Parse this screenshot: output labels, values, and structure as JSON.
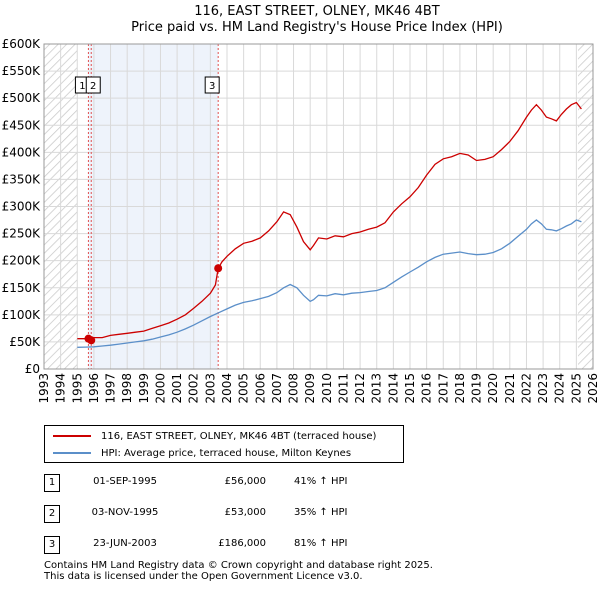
{
  "chart_data": {
    "type": "line",
    "title": "116, EAST STREET, OLNEY, MK46 4BT",
    "subtitle": "Price paid vs. HM Land Registry's House Price Index (HPI)",
    "xlim": [
      1993,
      2026
    ],
    "ylim": [
      0,
      600000
    ],
    "x_ticks": [
      1993,
      1994,
      1995,
      1996,
      1997,
      1998,
      1999,
      2000,
      2001,
      2002,
      2003,
      2004,
      2005,
      2006,
      2007,
      2008,
      2009,
      2010,
      2011,
      2012,
      2013,
      2014,
      2015,
      2016,
      2017,
      2018,
      2019,
      2020,
      2021,
      2022,
      2023,
      2024,
      2025,
      2026
    ],
    "y_ticks": [
      {
        "value": 0,
        "label": "£0"
      },
      {
        "value": 50000,
        "label": "£50K"
      },
      {
        "value": 100000,
        "label": "£100K"
      },
      {
        "value": 150000,
        "label": "£150K"
      },
      {
        "value": 200000,
        "label": "£200K"
      },
      {
        "value": 250000,
        "label": "£250K"
      },
      {
        "value": 300000,
        "label": "£300K"
      },
      {
        "value": 350000,
        "label": "£350K"
      },
      {
        "value": 400000,
        "label": "£400K"
      },
      {
        "value": 450000,
        "label": "£450K"
      },
      {
        "value": 500000,
        "label": "£500K"
      },
      {
        "value": 550000,
        "label": "£550K"
      },
      {
        "value": 600000,
        "label": "£600K"
      }
    ],
    "hatch_before": 1995.0,
    "hatch_after": 2025.1,
    "shade_start": 1995.67,
    "shade_end": 2003.47,
    "series": [
      {
        "name": "116, EAST STREET, OLNEY, MK46 4BT (terraced house)",
        "color": "#cc0000",
        "x": [
          1995.0,
          1995.67,
          1995.84,
          1996.0,
          1996.5,
          1997.0,
          1997.5,
          1998.0,
          1998.5,
          1999.0,
          1999.5,
          2000.0,
          2000.5,
          2001.0,
          2001.5,
          2002.0,
          2002.5,
          2003.0,
          2003.3,
          2003.47,
          2003.7,
          2004.0,
          2004.5,
          2005.0,
          2005.5,
          2006.0,
          2006.5,
          2007.0,
          2007.4,
          2007.8,
          2008.2,
          2008.6,
          2009.0,
          2009.2,
          2009.5,
          2010.0,
          2010.5,
          2011.0,
          2011.5,
          2012.0,
          2012.5,
          2013.0,
          2013.5,
          2014.0,
          2014.5,
          2015.0,
          2015.5,
          2016.0,
          2016.5,
          2017.0,
          2017.5,
          2018.0,
          2018.5,
          2019.0,
          2019.5,
          2020.0,
          2020.5,
          2021.0,
          2021.5,
          2022.0,
          2022.3,
          2022.6,
          2022.9,
          2023.2,
          2023.5,
          2023.8,
          2024.1,
          2024.4,
          2024.7,
          2025.0,
          2025.3
        ],
        "values": [
          56000,
          56000,
          53000,
          58000,
          58000,
          62000,
          64000,
          66000,
          68000,
          70000,
          75000,
          80000,
          85000,
          92000,
          100000,
          112000,
          125000,
          140000,
          155000,
          186000,
          198000,
          208000,
          222000,
          232000,
          236000,
          242000,
          255000,
          272000,
          290000,
          285000,
          262000,
          235000,
          220000,
          228000,
          242000,
          240000,
          246000,
          244000,
          250000,
          253000,
          258000,
          262000,
          270000,
          290000,
          305000,
          318000,
          335000,
          358000,
          378000,
          388000,
          392000,
          398000,
          395000,
          385000,
          387000,
          392000,
          405000,
          420000,
          440000,
          465000,
          478000,
          488000,
          478000,
          465000,
          462000,
          458000,
          470000,
          480000,
          488000,
          492000,
          480000
        ]
      },
      {
        "name": "HPI: Average price, terraced house, Milton Keynes",
        "color": "#5b8fc9",
        "x": [
          1995.0,
          1995.5,
          1996.0,
          1996.5,
          1997.0,
          1997.5,
          1998.0,
          1998.5,
          1999.0,
          1999.5,
          2000.0,
          2000.5,
          2001.0,
          2001.5,
          2002.0,
          2002.5,
          2003.0,
          2003.5,
          2004.0,
          2004.5,
          2005.0,
          2005.5,
          2006.0,
          2006.5,
          2007.0,
          2007.4,
          2007.8,
          2008.2,
          2008.6,
          2009.0,
          2009.2,
          2009.5,
          2010.0,
          2010.5,
          2011.0,
          2011.5,
          2012.0,
          2012.5,
          2013.0,
          2013.5,
          2014.0,
          2014.5,
          2015.0,
          2015.5,
          2016.0,
          2016.5,
          2017.0,
          2017.5,
          2018.0,
          2018.5,
          2019.0,
          2019.5,
          2020.0,
          2020.5,
          2021.0,
          2021.5,
          2022.0,
          2022.3,
          2022.6,
          2022.9,
          2023.2,
          2023.5,
          2023.8,
          2024.1,
          2024.4,
          2024.7,
          2025.0,
          2025.3
        ],
        "values": [
          40000,
          40500,
          41000,
          42500,
          44000,
          46000,
          48000,
          50000,
          52000,
          55000,
          59000,
          63000,
          68000,
          74000,
          81000,
          89000,
          97000,
          104000,
          111000,
          118000,
          123000,
          126000,
          130000,
          134000,
          141000,
          150000,
          156000,
          150000,
          136000,
          125000,
          128000,
          136000,
          135000,
          139000,
          137000,
          140000,
          141000,
          143000,
          145000,
          150000,
          160000,
          170000,
          179000,
          188000,
          198000,
          206000,
          212000,
          214000,
          216000,
          213000,
          211000,
          212000,
          215000,
          222000,
          232000,
          245000,
          258000,
          268000,
          275000,
          268000,
          258000,
          257000,
          255000,
          259000,
          264000,
          268000,
          275000,
          272000
        ]
      }
    ],
    "sales": [
      {
        "label": "1",
        "x": 1995.67,
        "value": 56000
      },
      {
        "label": "2",
        "x": 1995.84,
        "value": 53000
      },
      {
        "label": "3",
        "x": 2003.47,
        "value": 186000
      }
    ]
  },
  "legend": {
    "property_label": "116, EAST STREET, OLNEY, MK46 4BT (terraced house)",
    "hpi_label": "HPI: Average price, terraced house, Milton Keynes"
  },
  "transactions": [
    {
      "num": "1",
      "date": "01-SEP-1995",
      "price": "£56,000",
      "hpi": "41% ↑ HPI"
    },
    {
      "num": "2",
      "date": "03-NOV-1995",
      "price": "£53,000",
      "hpi": "35% ↑ HPI"
    },
    {
      "num": "3",
      "date": "23-JUN-2003",
      "price": "£186,000",
      "hpi": "81% ↑ HPI"
    }
  ],
  "footer": {
    "line1": "Contains HM Land Registry data © Crown copyright and database right 2025.",
    "line2": "This data is licensed under the Open Government Licence v3.0."
  },
  "colors": {
    "property": "#cc0000",
    "hpi": "#5b8fc9",
    "plot_bg": "#eef3fb",
    "grid": "#d9d9d9"
  }
}
